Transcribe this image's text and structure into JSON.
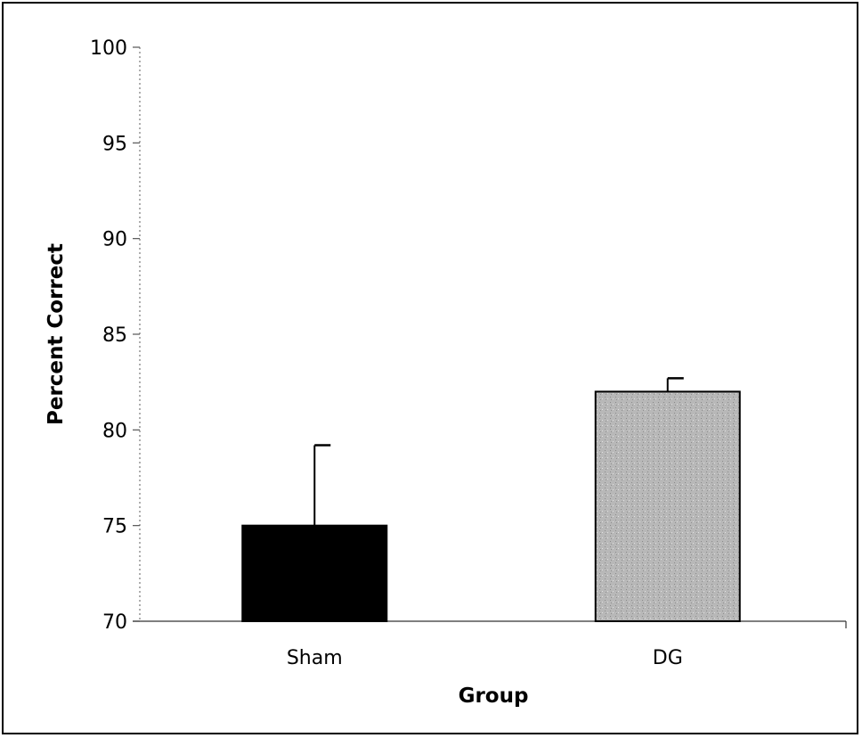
{
  "chart_data": {
    "type": "bar",
    "title": "",
    "xlabel": "Group",
    "ylabel": "Percent Correct",
    "categories": [
      "Sham",
      "DG"
    ],
    "values": [
      75,
      82
    ],
    "error_plus": [
      4.2,
      0.7
    ],
    "ylim": [
      70,
      100
    ],
    "yticks": [
      70,
      75,
      80,
      85,
      90,
      95,
      100
    ],
    "grid": false,
    "legend": "none",
    "bar_colors": [
      "#000000",
      "#b8b8b8"
    ]
  }
}
